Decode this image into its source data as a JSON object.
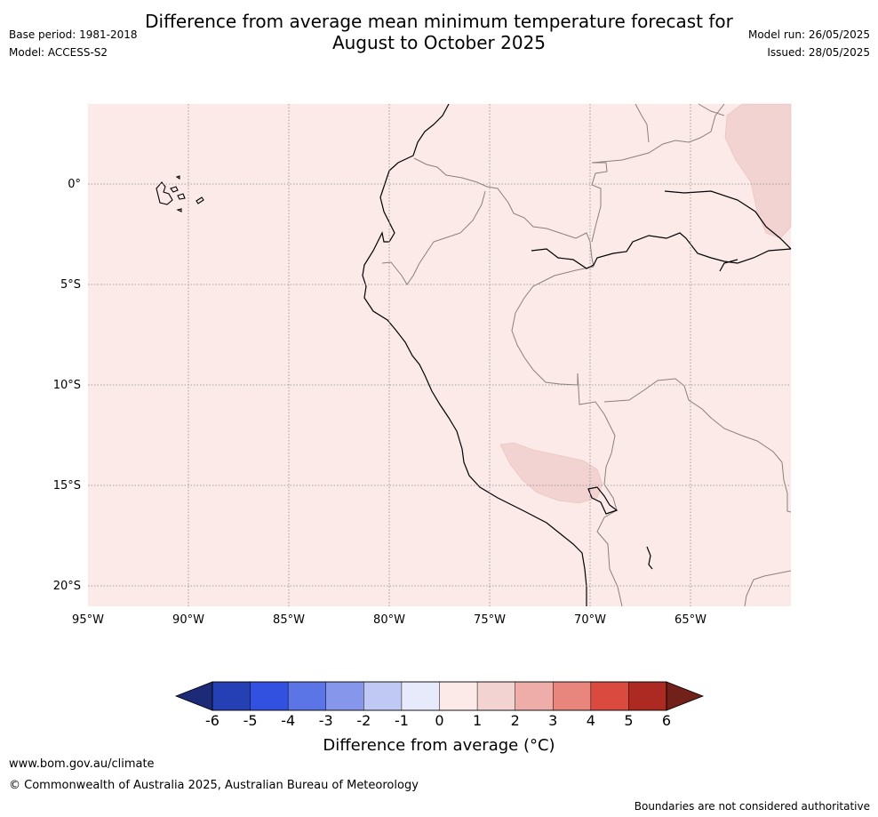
{
  "title": {
    "line1": "Difference from average mean minimum temperature forecast for",
    "line2": "August to October 2025"
  },
  "meta": {
    "base_period": "Base period: 1981-2018",
    "model": "Model: ACCESS-S2",
    "model_run": "Model run: 26/05/2025",
    "issued": "Issued: 28/05/2025"
  },
  "map": {
    "background_color": "#fbeae8",
    "warm_patch_color": "#f2d3d1",
    "latitude_labels": [
      "0°",
      "5°S",
      "10°S",
      "15°S",
      "20°S"
    ],
    "longitude_labels": [
      "95°W",
      "90°W",
      "85°W",
      "80°W",
      "75°W",
      "70°W",
      "65°W"
    ]
  },
  "colorbar": {
    "ticks": [
      "-6",
      "-5",
      "-4",
      "-3",
      "-2",
      "-1",
      "0",
      "1",
      "2",
      "3",
      "4",
      "5",
      "6"
    ],
    "colors": [
      "#1c2a78",
      "#2540b4",
      "#3351e0",
      "#5b74e6",
      "#8596eb",
      "#c0c8f4",
      "#e7eafa",
      "#fbeae8",
      "#f2d3d1",
      "#eeada8",
      "#e8867e",
      "#db4a3f",
      "#ad2a22",
      "#72211a"
    ],
    "label": "Difference from average (°C)"
  },
  "footer": {
    "url": "www.bom.gov.au/climate",
    "copyright": "© Commonwealth of Australia 2025, Australian Bureau of Meteorology",
    "disclaimer": "Boundaries are not considered authoritative"
  }
}
